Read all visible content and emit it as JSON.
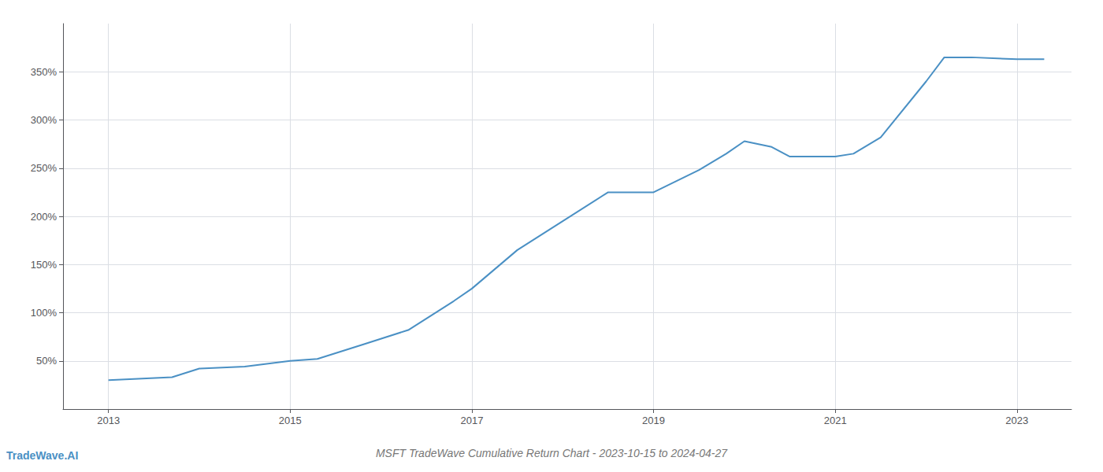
{
  "chart_data": {
    "type": "line",
    "title": "MSFT TradeWave Cumulative Return Chart - 2023-10-15 to 2024-04-27",
    "annotations": [
      "TradeWave.AI"
    ],
    "color": "#4a90c4",
    "x": [
      2013.0,
      2013.7,
      2014.0,
      2014.5,
      2015.0,
      2015.3,
      2015.8,
      2016.3,
      2016.8,
      2017.0,
      2017.5,
      2018.0,
      2018.5,
      2019.0,
      2019.5,
      2019.8,
      2020.0,
      2020.3,
      2020.5,
      2021.0,
      2021.2,
      2021.5,
      2022.0,
      2022.2,
      2022.5,
      2023.0,
      2023.3
    ],
    "values": [
      30,
      33,
      42,
      44,
      50,
      52,
      67,
      82,
      112,
      125,
      165,
      195,
      225,
      225,
      248,
      265,
      278,
      272,
      262,
      262,
      265,
      282,
      340,
      365,
      365,
      363,
      363
    ],
    "xlim": [
      2012.5,
      2023.6
    ],
    "ylim": [
      0,
      400
    ],
    "xticks": [
      2013,
      2015,
      2017,
      2019,
      2021,
      2023
    ],
    "yticks": [
      {
        "value": 50,
        "label": "50%"
      },
      {
        "value": 100,
        "label": "100%"
      },
      {
        "value": 150,
        "label": "150%"
      },
      {
        "value": 200,
        "label": "200%"
      },
      {
        "value": 250,
        "label": "250%"
      },
      {
        "value": 300,
        "label": "300%"
      },
      {
        "value": 350,
        "label": "350%"
      }
    ],
    "grid": true
  }
}
